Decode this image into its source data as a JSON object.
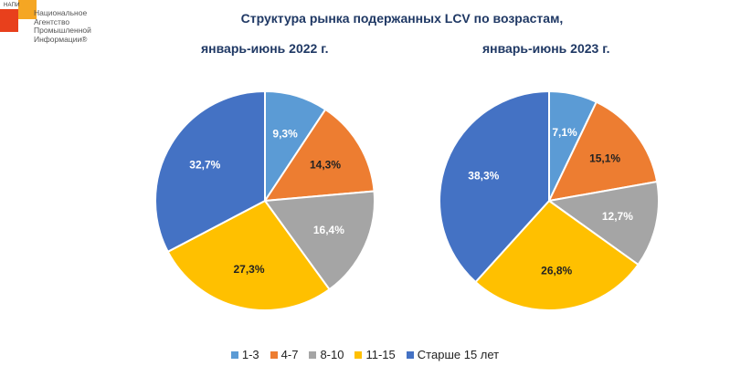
{
  "logo": {
    "abbr": "НАПИ",
    "text": "Национальное\nАгентство\nПромышленной\nИнформации®"
  },
  "chart_data": {
    "type": "pie",
    "title": "Структура рынка подержанных LCV по возрастам,",
    "categories": [
      "1-3",
      "4-7",
      "8-10",
      "11-15",
      "Старше 15 лет"
    ],
    "colors": [
      "#5b9bd5",
      "#ed7d31",
      "#a5a5a5",
      "#ffc000",
      "#4472c4"
    ],
    "label_colors": [
      "#ffffff",
      "#222222",
      "#ffffff",
      "#222222",
      "#ffffff"
    ],
    "series": [
      {
        "name": "январь-июнь 2022 г.",
        "values": [
          9.3,
          14.3,
          16.4,
          27.3,
          32.7
        ],
        "labels": [
          "9,3%",
          "14,3%",
          "16,4%",
          "27,3%",
          "32,7%"
        ]
      },
      {
        "name": "январь-июнь 2023 г.",
        "values": [
          7.1,
          15.1,
          12.7,
          26.8,
          38.3
        ],
        "labels": [
          "7,1%",
          "15,1%",
          "12,7%",
          "26,8%",
          "38,3%"
        ]
      }
    ],
    "legend_position": "bottom"
  }
}
